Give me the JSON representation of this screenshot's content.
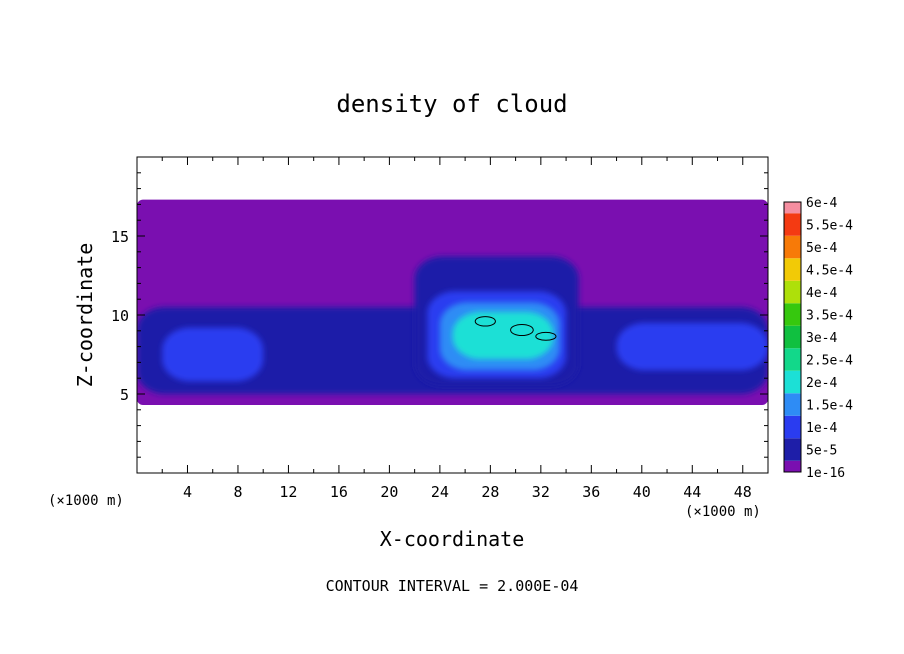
{
  "chart_data": {
    "type": "heatmap",
    "title": "density of cloud",
    "xlabel": "X-coordinate",
    "ylabel": "Z-coordinate",
    "x_unit": "(×1000 m)",
    "z_unit": "(×1000 m)",
    "xlim": [
      0,
      50
    ],
    "ylim": [
      0,
      20
    ],
    "x_ticks": [
      4,
      8,
      12,
      16,
      20,
      24,
      28,
      32,
      36,
      40,
      44,
      48
    ],
    "y_ticks": [
      5,
      10,
      15
    ],
    "footer": "CONTOUR INTERVAL = 2.000E-04",
    "colorbar": {
      "levels": [
        {
          "label": "1e-16",
          "color": "#7a0fb0"
        },
        {
          "label": "5e-5",
          "color": "#1e1ea8"
        },
        {
          "label": "1e-4",
          "color": "#2a3cf0"
        },
        {
          "label": "1.5e-4",
          "color": "#2e8cf5"
        },
        {
          "label": "2e-4",
          "color": "#1ce0d6"
        },
        {
          "label": "2.5e-4",
          "color": "#12d88a"
        },
        {
          "label": "3e-4",
          "color": "#10c040"
        },
        {
          "label": "3.5e-4",
          "color": "#36c80e"
        },
        {
          "label": "4e-4",
          "color": "#aee00a"
        },
        {
          "label": "4.5e-4",
          "color": "#f2ca06"
        },
        {
          "label": "5e-4",
          "color": "#f77a08"
        },
        {
          "label": "5.5e-4",
          "color": "#f43a12"
        },
        {
          "label": "6e-4",
          "color": "#f58ea0"
        }
      ]
    },
    "cloud_regions": [
      {
        "name": "cloud-layer",
        "level": 0,
        "x": [
          0,
          50
        ],
        "z": [
          4.3,
          17.3
        ]
      },
      {
        "name": "lower-band",
        "level": 1,
        "x": [
          0,
          50
        ],
        "z": [
          5.0,
          10.5
        ]
      },
      {
        "name": "left-core",
        "level": 2,
        "x": [
          2,
          10
        ],
        "z": [
          5.8,
          9.2
        ]
      },
      {
        "name": "central-tower",
        "level": 1,
        "x": [
          22,
          35
        ],
        "z": [
          5.5,
          13.7
        ]
      },
      {
        "name": "central-core-outer",
        "level": 2,
        "x": [
          23,
          34
        ],
        "z": [
          6.0,
          11.5
        ]
      },
      {
        "name": "central-core-mid",
        "level": 3,
        "x": [
          24,
          33.5
        ],
        "z": [
          6.5,
          10.8
        ]
      },
      {
        "name": "central-core-inner",
        "level": 4,
        "x": [
          25,
          33
        ],
        "z": [
          7.2,
          10.2
        ]
      },
      {
        "name": "right-band-core",
        "level": 2,
        "x": [
          38,
          50
        ],
        "z": [
          6.5,
          9.5
        ]
      }
    ],
    "contour_lines": [
      {
        "x": [
          26.8,
          28.4
        ],
        "z": [
          9.3,
          9.9
        ]
      },
      {
        "x": [
          29.6,
          31.4
        ],
        "z": [
          8.7,
          9.4
        ]
      },
      {
        "x": [
          31.6,
          33.2
        ],
        "z": [
          8.4,
          8.9
        ]
      }
    ]
  }
}
